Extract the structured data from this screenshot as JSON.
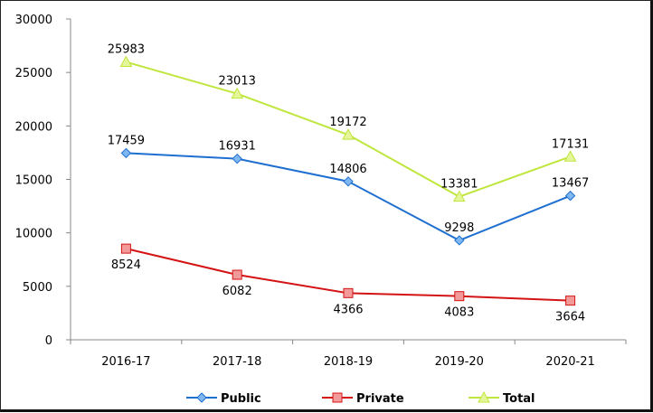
{
  "chart_data": {
    "type": "line",
    "title": "",
    "xlabel": "",
    "ylabel": "",
    "categories": [
      "2016-17",
      "2017-18",
      "2018-19",
      "2019-20",
      "2020-21"
    ],
    "ylim": [
      0,
      30000
    ],
    "yticks": [
      0,
      5000,
      10000,
      15000,
      20000,
      25000,
      30000
    ],
    "grid": false,
    "legend": "bottom",
    "series": [
      {
        "name": "Public",
        "values": [
          17459,
          16931,
          14806,
          9298,
          13467
        ],
        "color": "#1f6fd1",
        "marker": "diamond",
        "marker_fill": "#7fb7f0",
        "label_pos": "above"
      },
      {
        "name": "Private",
        "values": [
          8524,
          6082,
          4366,
          4083,
          3664
        ],
        "color": "#d41414",
        "marker": "square",
        "marker_fill": "#f29a9a",
        "label_pos": "below"
      },
      {
        "name": "Total",
        "values": [
          25983,
          23013,
          19172,
          13381,
          17131
        ],
        "color": "#bfe63c",
        "marker": "triangle",
        "marker_fill": "#e4f59a",
        "label_pos": "above"
      }
    ]
  }
}
